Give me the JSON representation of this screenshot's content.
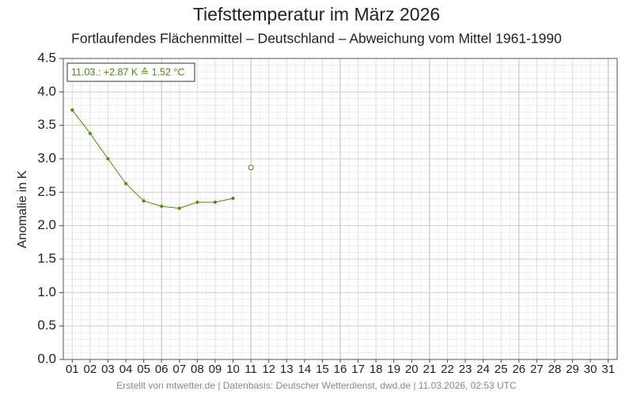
{
  "chart_data": {
    "type": "line",
    "title": "Tiefsttemperatur im März 2026",
    "subtitle": "Fortlaufendes Flächenmittel – Deutschland – Abweichung vom Mittel 1961-1990",
    "y_label": "Anomalie in K",
    "annotation": "11.03.: +2.87 K ≙ 1.52 °C",
    "footer": "Erstellt von mtwetter.de | Datenbasis: Deutscher Wetterdienst, dwd.de | 11.03.2026, 02:53 UTC",
    "categories": [
      "01",
      "02",
      "03",
      "04",
      "05",
      "06",
      "07",
      "08",
      "09",
      "10",
      "11",
      "12",
      "13",
      "14",
      "15",
      "16",
      "17",
      "18",
      "19",
      "20",
      "21",
      "22",
      "23",
      "24",
      "25",
      "26",
      "27",
      "28",
      "29",
      "30",
      "31"
    ],
    "series": [
      {
        "color": "#4a8a10",
        "values": [
          3.73,
          3.38,
          3.0,
          2.63,
          2.37,
          2.29,
          2.26,
          2.35,
          2.35,
          2.41,
          null,
          null,
          null,
          null,
          null,
          null,
          null,
          null,
          null,
          null,
          null,
          null,
          null,
          null,
          null,
          null,
          null,
          null,
          null,
          null,
          null
        ]
      },
      {
        "color": "#4a8a10",
        "hollow": true,
        "values": [
          null,
          null,
          null,
          null,
          null,
          null,
          null,
          null,
          null,
          null,
          2.87,
          null,
          null,
          null,
          null,
          null,
          null,
          null,
          null,
          null,
          null,
          null,
          null,
          null,
          null,
          null,
          null,
          null,
          null,
          null,
          null
        ]
      }
    ],
    "ylim": [
      0,
      4.5
    ],
    "yticks": [
      {
        "value": 0,
        "label": "0.0"
      },
      0.5,
      {
        "value": 1,
        "label": "1.0"
      },
      1.5,
      {
        "value": 2,
        "label": "2.0"
      },
      2.5,
      {
        "value": 3,
        "label": "3.0"
      },
      3.5,
      {
        "value": 4,
        "label": "4.0"
      },
      4.5
    ],
    "grid": true
  }
}
